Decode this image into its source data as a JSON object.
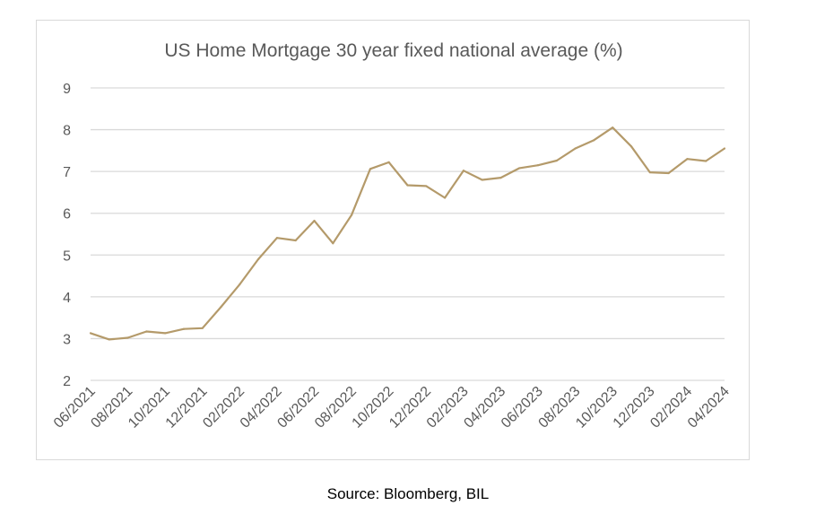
{
  "chart_data": {
    "type": "line",
    "title": "US Home Mortgage 30 year fixed national average (%)",
    "xlabel": "",
    "ylabel": "",
    "ylim": [
      2,
      9
    ],
    "yticks": [
      "2",
      "3",
      "4",
      "5",
      "6",
      "7",
      "8",
      "9"
    ],
    "grid": true,
    "legend": "none",
    "line_color": "#b49a6a",
    "grid_color": "#d9d9d9",
    "x_tick_labels": [
      "06/2021",
      "08/2021",
      "10/2021",
      "12/2021",
      "02/2022",
      "04/2022",
      "06/2022",
      "08/2022",
      "10/2022",
      "12/2022",
      "02/2023",
      "04/2023",
      "06/2023",
      "08/2023",
      "10/2023",
      "12/2023",
      "02/2024",
      "04/2024"
    ],
    "x": [
      "06/2021",
      "07/2021",
      "08/2021",
      "09/2021",
      "10/2021",
      "11/2021",
      "12/2021",
      "01/2022",
      "02/2022",
      "03/2022",
      "04/2022",
      "05/2022",
      "06/2022",
      "07/2022",
      "08/2022",
      "09/2022",
      "10/2022",
      "11/2022",
      "12/2022",
      "01/2023",
      "02/2023",
      "03/2023",
      "04/2023",
      "05/2023",
      "06/2023",
      "07/2023",
      "08/2023",
      "09/2023",
      "10/2023",
      "11/2023",
      "12/2023",
      "01/2024",
      "02/2024",
      "03/2024",
      "04/2024"
    ],
    "series": [
      {
        "values": [
          3.13,
          2.98,
          3.02,
          3.17,
          3.13,
          3.23,
          3.25,
          3.76,
          4.3,
          4.9,
          5.41,
          5.35,
          5.82,
          5.28,
          5.96,
          7.06,
          7.22,
          6.67,
          6.65,
          6.37,
          7.02,
          6.8,
          6.85,
          7.08,
          7.15,
          7.26,
          7.55,
          7.75,
          8.05,
          7.6,
          6.98,
          6.96,
          7.3,
          7.25,
          7.55
        ]
      }
    ]
  },
  "footer": {
    "source": "Source: Bloomberg, BIL"
  }
}
